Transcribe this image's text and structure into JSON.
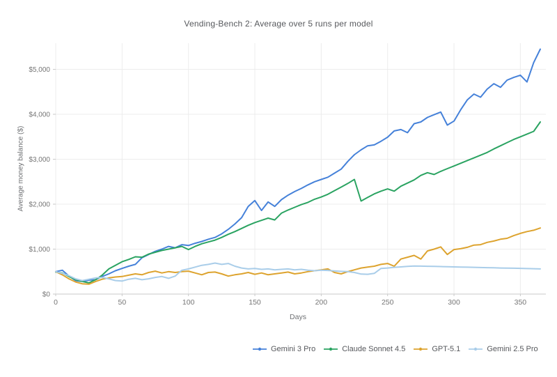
{
  "chart_data": {
    "type": "line",
    "title": "Vending-Bench 2: Average over 5 runs per model",
    "xlabel": "Days",
    "ylabel": "Average money balance ($)",
    "xlim": [
      0,
      368
    ],
    "ylim": [
      0,
      5600
    ],
    "grid": true,
    "legend_position": "bottom-right",
    "x_ticks": [
      0,
      50,
      100,
      150,
      200,
      250,
      300,
      350
    ],
    "y_ticks": [
      {
        "value": 0,
        "label": "$0"
      },
      {
        "value": 1000,
        "label": "$1,000"
      },
      {
        "value": 2000,
        "label": "$2,000"
      },
      {
        "value": 3000,
        "label": "$3,000"
      },
      {
        "value": 4000,
        "label": "$4,000"
      },
      {
        "value": 5000,
        "label": "$5,000"
      }
    ],
    "x": [
      0,
      5,
      10,
      15,
      20,
      25,
      30,
      35,
      40,
      45,
      50,
      55,
      60,
      65,
      70,
      75,
      80,
      85,
      90,
      95,
      100,
      105,
      110,
      115,
      120,
      125,
      130,
      135,
      140,
      145,
      150,
      155,
      160,
      165,
      170,
      175,
      180,
      185,
      190,
      195,
      200,
      205,
      210,
      215,
      220,
      225,
      230,
      235,
      240,
      245,
      250,
      255,
      260,
      265,
      270,
      275,
      280,
      285,
      290,
      295,
      300,
      305,
      310,
      315,
      320,
      325,
      330,
      335,
      340,
      345,
      350,
      355,
      360,
      365
    ],
    "series": [
      {
        "name": "Gemini 3 Pro",
        "color": "#4581d9",
        "values": [
          500,
          530,
          400,
          300,
          280,
          310,
          320,
          390,
          450,
          520,
          570,
          620,
          660,
          810,
          880,
          950,
          1000,
          1060,
          1030,
          1100,
          1080,
          1130,
          1170,
          1220,
          1260,
          1340,
          1440,
          1560,
          1700,
          1950,
          2080,
          1860,
          2050,
          1950,
          2100,
          2200,
          2280,
          2350,
          2430,
          2500,
          2550,
          2600,
          2690,
          2780,
          2950,
          3100,
          3210,
          3300,
          3320,
          3400,
          3490,
          3630,
          3660,
          3590,
          3790,
          3830,
          3930,
          3990,
          4050,
          3760,
          3850,
          4100,
          4320,
          4450,
          4380,
          4560,
          4680,
          4600,
          4760,
          4820,
          4870,
          4720,
          5150,
          5450
        ]
      },
      {
        "name": "Claude Sonnet 4.5",
        "color": "#2aa361",
        "values": [
          490,
          470,
          390,
          320,
          280,
          250,
          320,
          420,
          560,
          640,
          720,
          770,
          830,
          820,
          890,
          930,
          970,
          1000,
          1030,
          1060,
          990,
          1060,
          1120,
          1160,
          1200,
          1260,
          1330,
          1390,
          1460,
          1530,
          1590,
          1640,
          1690,
          1650,
          1800,
          1870,
          1930,
          1990,
          2040,
          2110,
          2160,
          2220,
          2300,
          2380,
          2460,
          2550,
          2070,
          2150,
          2230,
          2290,
          2340,
          2290,
          2400,
          2470,
          2540,
          2640,
          2700,
          2660,
          2730,
          2790,
          2850,
          2910,
          2970,
          3030,
          3090,
          3150,
          3230,
          3300,
          3370,
          3440,
          3500,
          3560,
          3620,
          3830
        ]
      },
      {
        "name": "GPT-5.1",
        "color": "#dda32e",
        "values": [
          500,
          430,
          340,
          270,
          230,
          220,
          280,
          330,
          360,
          380,
          390,
          420,
          450,
          430,
          480,
          510,
          470,
          500,
          480,
          500,
          510,
          470,
          430,
          480,
          490,
          450,
          400,
          430,
          450,
          480,
          440,
          470,
          430,
          450,
          470,
          490,
          450,
          470,
          500,
          520,
          540,
          560,
          480,
          450,
          500,
          540,
          580,
          600,
          620,
          660,
          680,
          620,
          780,
          820,
          860,
          780,
          960,
          1000,
          1050,
          880,
          990,
          1010,
          1040,
          1090,
          1100,
          1150,
          1180,
          1220,
          1240,
          1300,
          1350,
          1390,
          1420,
          1470
        ]
      },
      {
        "name": "Gemini 2.5 Pro",
        "color": "#a9cde9",
        "values": [
          500,
          460,
          410,
          340,
          300,
          330,
          360,
          370,
          340,
          300,
          290,
          330,
          350,
          320,
          340,
          370,
          390,
          350,
          400,
          530,
          560,
          600,
          640,
          660,
          690,
          660,
          680,
          620,
          580,
          560,
          570,
          550,
          560,
          540,
          550,
          560,
          540,
          550,
          530,
          520,
          530,
          525,
          515,
          505,
          500,
          480,
          445,
          440,
          460,
          570,
          580,
          595,
          605,
          615,
          625,
          622,
          618,
          615,
          612,
          608,
          605,
          600,
          598,
          595,
          590,
          588,
          585,
          580,
          578,
          575,
          572,
          568,
          564,
          560
        ]
      }
    ],
    "colors": {
      "grid": "#ececec",
      "axis_line": "#c9c9c9",
      "tick_text": "#757575",
      "title_text": "#56585c",
      "background": "#ffffff"
    }
  }
}
